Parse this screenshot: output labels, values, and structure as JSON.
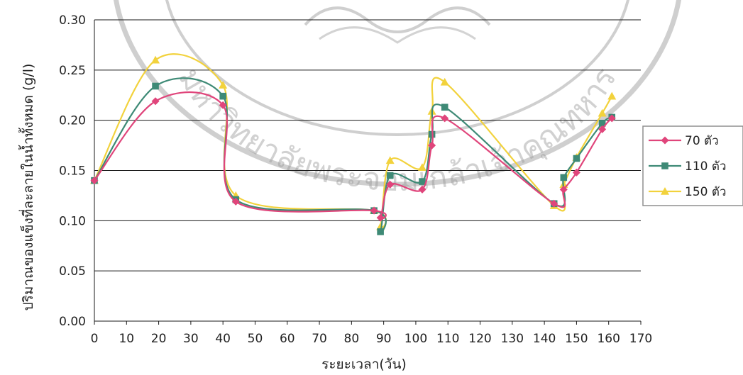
{
  "chart_data": {
    "type": "line",
    "title": "",
    "xlabel": "ระยะเวลา(วัน)",
    "ylabel": "ปริมาณของแข็งที่ละลายในน้ำทั้งหมด (g/l)",
    "xlim": [
      0,
      170
    ],
    "ylim": [
      0,
      0.3
    ],
    "xticks": [
      "0",
      "10",
      "20",
      "30",
      "40",
      "50",
      "60",
      "70",
      "80",
      "90",
      "100",
      "110",
      "120",
      "130",
      "140",
      "150",
      "160",
      "170"
    ],
    "yticks": [
      "0.00",
      "0.05",
      "0.10",
      "0.15",
      "0.20",
      "0.25",
      "0.30"
    ],
    "grid": "horizontal",
    "legend_position": "right",
    "series": [
      {
        "name": "70 ตัว",
        "color": "#e0457b",
        "marker": "diamond",
        "x": [
          0,
          19,
          40,
          44,
          87,
          89,
          92,
          102,
          105,
          109,
          143,
          146,
          150,
          158,
          161
        ],
        "y": [
          0.14,
          0.219,
          0.215,
          0.119,
          0.11,
          0.103,
          0.136,
          0.131,
          0.175,
          0.202,
          0.117,
          0.131,
          0.148,
          0.191,
          0.202
        ]
      },
      {
        "name": "110 ตัว",
        "color": "#3e8a76",
        "marker": "square",
        "x": [
          0,
          19,
          40,
          44,
          87,
          89,
          92,
          102,
          105,
          109,
          143,
          146,
          150,
          158,
          161
        ],
        "y": [
          0.14,
          0.234,
          0.224,
          0.121,
          0.11,
          0.089,
          0.145,
          0.139,
          0.186,
          0.213,
          0.117,
          0.143,
          0.162,
          0.197,
          0.203
        ]
      },
      {
        "name": "150 ตัว",
        "color": "#f2d23c",
        "marker": "triangle",
        "x": [
          0,
          19,
          40,
          44,
          87,
          89,
          92,
          102,
          105,
          109,
          143,
          146,
          150,
          158,
          161
        ],
        "y": [
          0.14,
          0.26,
          0.235,
          0.125,
          0.11,
          0.094,
          0.16,
          0.153,
          0.209,
          0.238,
          0.115,
          0.136,
          0.163,
          0.207,
          0.224
        ]
      }
    ]
  },
  "watermark": {
    "text": "มหาวิทยาลัยพระจอมเกล้าเจ้าคุณทหาร",
    "color": "#9a9a9a"
  },
  "colors": {
    "grid": "#1a1a1a",
    "legend_border": "#8f8f8f"
  }
}
